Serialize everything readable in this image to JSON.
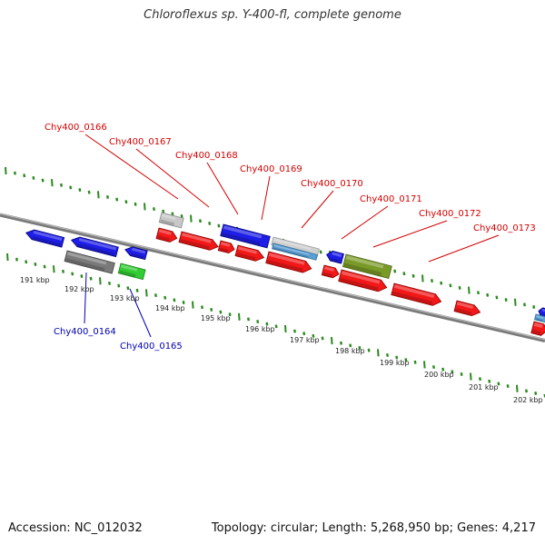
{
  "title": "Chloroflexus sp. Y-400-fl, complete genome",
  "footer": {
    "accession": "Accession: NC_012032",
    "summary": "Topology: circular; Length: 5,268,950 bp; Genes: 4,217"
  },
  "colors": {
    "label_red": "#d40000",
    "label_blue": "#0000b4",
    "tick_green": "#2a8a1e",
    "backbone": "#7a7a7a"
  },
  "scale_labels": [
    "191 kbp",
    "192 kbp",
    "193 kbp",
    "194 kbp",
    "195 kbp",
    "196 kbp",
    "197 kbp",
    "198 kbp",
    "199 kbp",
    "200 kbp",
    "201 kbp",
    "202 kbp"
  ],
  "gene_labels_top": [
    "Chy400_0166",
    "Chy400_0167",
    "Chy400_0168",
    "Chy400_0169",
    "Chy400_0170",
    "Chy400_0171",
    "Chy400_0172",
    "Chy400_0173"
  ],
  "gene_labels_bottom": [
    "Chy400_0164",
    "Chy400_0165"
  ]
}
